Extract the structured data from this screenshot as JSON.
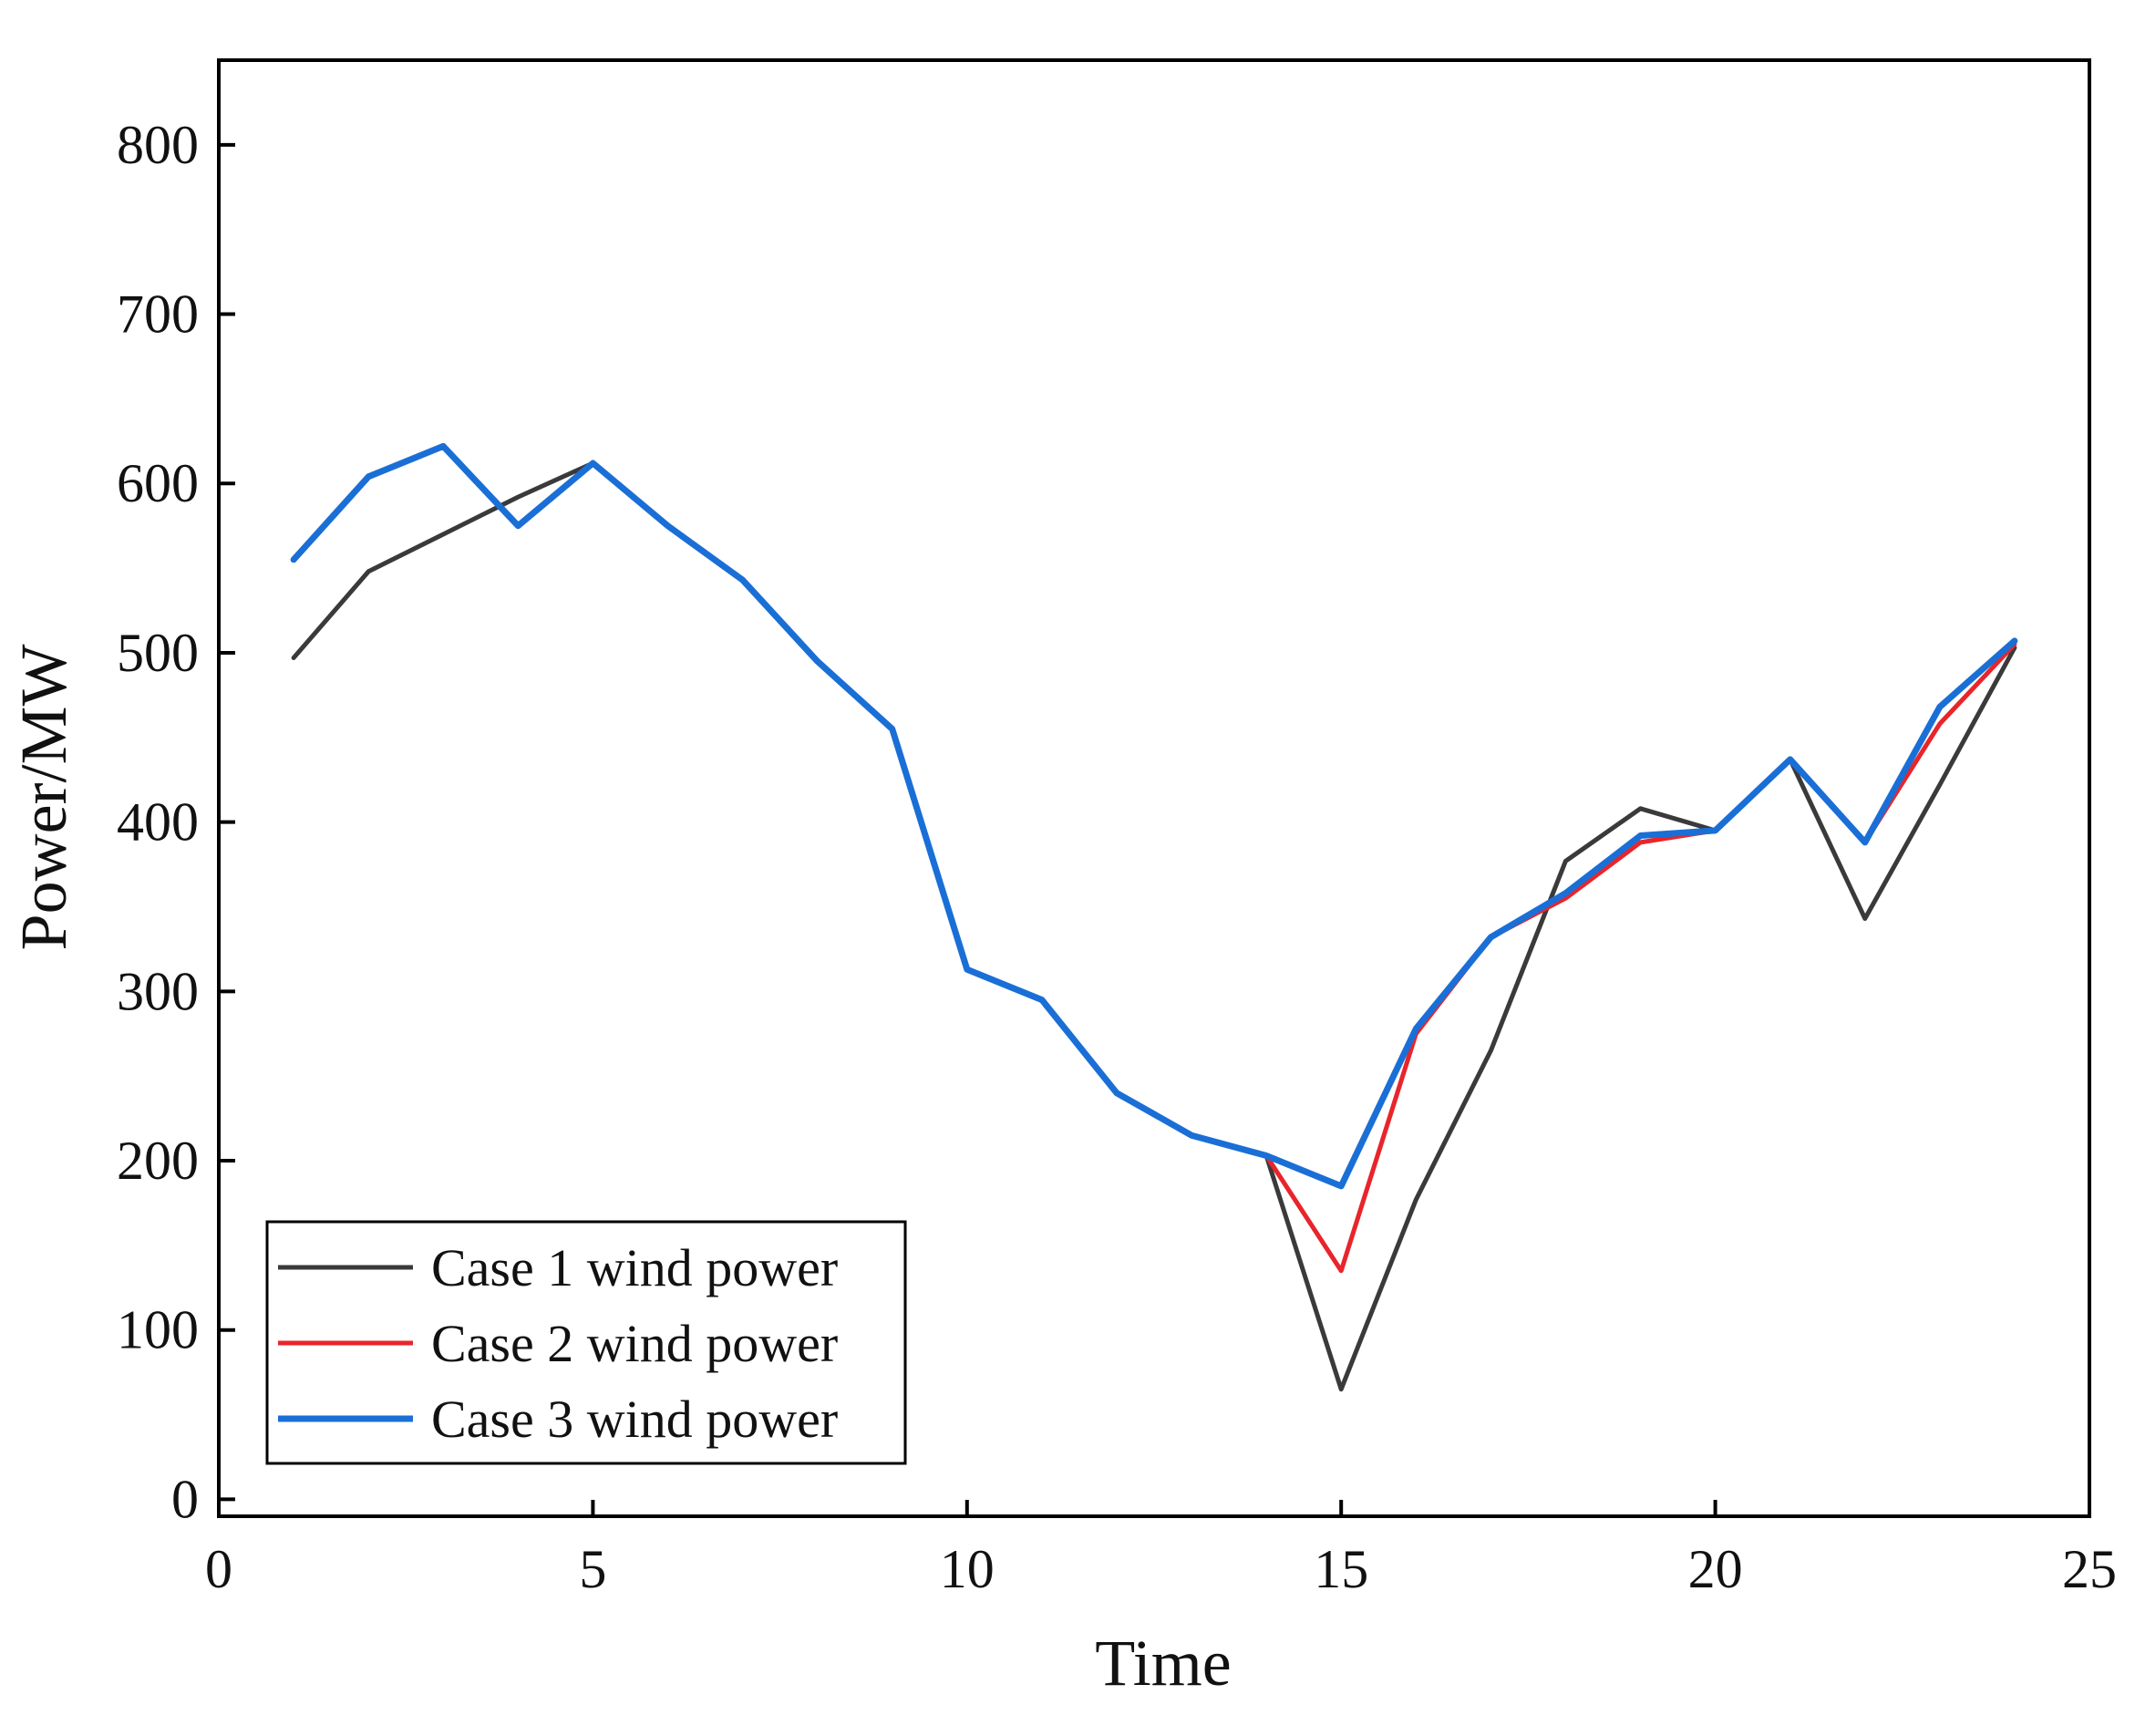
{
  "chart_data": {
    "type": "line",
    "title": "",
    "xlabel": "Time",
    "ylabel": "Power/MW",
    "xlim": [
      0,
      25
    ],
    "ylim": [
      -10,
      850
    ],
    "xticks": [
      0,
      5,
      10,
      15,
      20,
      25
    ],
    "yticks": [
      0,
      100,
      200,
      300,
      400,
      500,
      600,
      700,
      800
    ],
    "grid": false,
    "legend": "bottom-left",
    "x": [
      1,
      2,
      3,
      4,
      5,
      6,
      7,
      8,
      9,
      10,
      11,
      12,
      13,
      14,
      15,
      16,
      17,
      18,
      19,
      20,
      21,
      22,
      23,
      24
    ],
    "series": [
      {
        "name": "Case 1 wind power",
        "color": "#3a3a3a",
        "values": [
          497,
          548,
          570,
          592,
          612,
          575,
          543,
          495,
          455,
          313,
          295,
          240,
          215,
          203,
          65,
          177,
          265,
          377,
          408,
          395,
          437,
          343,
          422,
          503
        ]
      },
      {
        "name": "Case 2 wind power",
        "color": "#e8252b",
        "values": [
          555,
          604,
          622,
          575,
          612,
          575,
          543,
          495,
          455,
          313,
          295,
          240,
          215,
          203,
          135,
          275,
          332,
          355,
          388,
          395,
          437,
          388,
          458,
          505
        ]
      },
      {
        "name": "Case 3 wind power",
        "color": "#1a6fd6",
        "values": [
          555,
          604,
          622,
          575,
          612,
          575,
          543,
          495,
          455,
          313,
          295,
          240,
          215,
          203,
          185,
          278,
          332,
          358,
          392,
          395,
          437,
          388,
          468,
          507
        ]
      }
    ]
  }
}
